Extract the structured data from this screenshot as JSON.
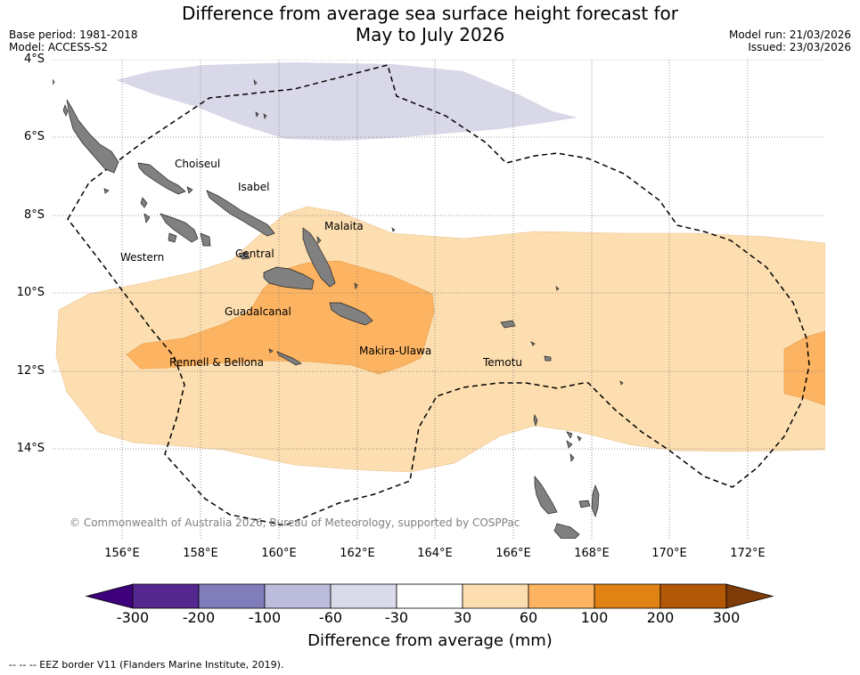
{
  "header": {
    "title_line1": "Difference from average sea surface height forecast for",
    "title_line2": "May to July 2026",
    "base_period": "Base period: 1981-2018",
    "model": "Model: ACCESS-S2",
    "model_run": "Model run: 21/03/2026",
    "issued": "Issued: 23/03/2026"
  },
  "map": {
    "lat_labels": [
      "4°S",
      "6°S",
      "8°S",
      "10°S",
      "12°S",
      "14°S"
    ],
    "lon_labels": [
      "156°E",
      "158°E",
      "160°E",
      "162°E",
      "164°E",
      "166°E",
      "168°E",
      "170°E",
      "172°E"
    ],
    "places": {
      "choiseul": "Choiseul",
      "isabel": "Isabel",
      "malaita": "Malaita",
      "western": "Western",
      "central": "Central",
      "guadalcanal": "Guadalcanal",
      "makira_ulawa": "Makira-Ulawa",
      "rennell_bellona": "Rennell & Bellona",
      "temotu": "Temotu"
    },
    "credit": "© Commonwealth of Australia 2026, Bureau of Meteorology, supported by COSPPac",
    "land_color": "#808080"
  },
  "colorbar": {
    "labels": [
      "-300",
      "-200",
      "-100",
      "-60",
      "-30",
      "30",
      "60",
      "100",
      "200",
      "300"
    ],
    "colors": [
      "#3f007d",
      "#54278f",
      "#807dba",
      "#bcbddc",
      "#dadaeb",
      "#ffffff",
      "#fddeb0",
      "#fdb462",
      "#e08214",
      "#b35806",
      "#7f3b08"
    ],
    "title": "Difference from average (mm)"
  },
  "footer": {
    "legend": "--  --  -- EEZ border V11 (Flanders Marine Institute, 2019)."
  }
}
